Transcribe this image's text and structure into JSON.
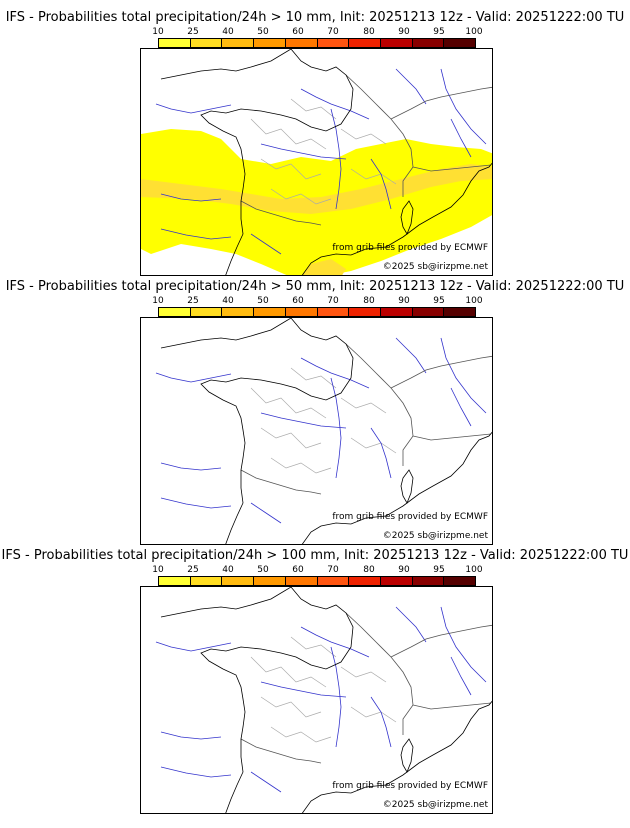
{
  "legend_ticks": [
    "10",
    "25",
    "40",
    "50",
    "60",
    "70",
    "80",
    "90",
    "95",
    "100"
  ],
  "legend_colors": [
    "#ffff33",
    "#ffdd22",
    "#ffbb11",
    "#ff9900",
    "#ff7700",
    "#ff5511",
    "#ee2200",
    "#bb0000",
    "#880000",
    "#550000"
  ],
  "credit_source": "from grib files provided by ECMWF",
  "credit_copyright": "©2025 sb@irizpme.net",
  "panels": [
    {
      "title": "IFS - Probabilities total precipitation/24h > 10 mm, Init: 20251213 12z - Valid: 20251222:00 TU",
      "fill_color": "#ffff00",
      "fill_color2": "#ffe033"
    },
    {
      "title": "IFS - Probabilities total precipitation/24h > 50 mm, Init: 20251213 12z - Valid: 20251222:00 TU",
      "fill_color": "",
      "fill_color2": ""
    },
    {
      "title": "IFS - Probabilities total precipitation/24h > 100 mm, Init: 20251213 12z - Valid: 20251222:00 TU",
      "fill_color": "",
      "fill_color2": ""
    }
  ]
}
